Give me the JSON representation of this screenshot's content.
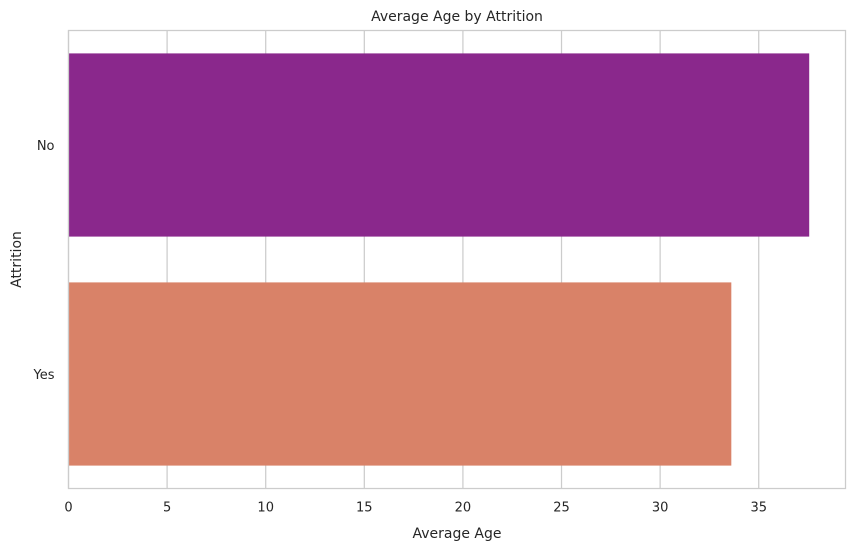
{
  "chart_data": {
    "type": "bar",
    "orientation": "horizontal",
    "title": "Average Age by Attrition",
    "xlabel": "Average Age",
    "ylabel": "Attrition",
    "categories": [
      "No",
      "Yes"
    ],
    "values": [
      37.56,
      33.61
    ],
    "xlim": [
      0,
      39.4
    ],
    "xticks": [
      0,
      5,
      10,
      15,
      20,
      25,
      30,
      35
    ],
    "colors": [
      "#8a288c",
      "#d98268"
    ],
    "grid": "vertical",
    "legend": "none"
  }
}
